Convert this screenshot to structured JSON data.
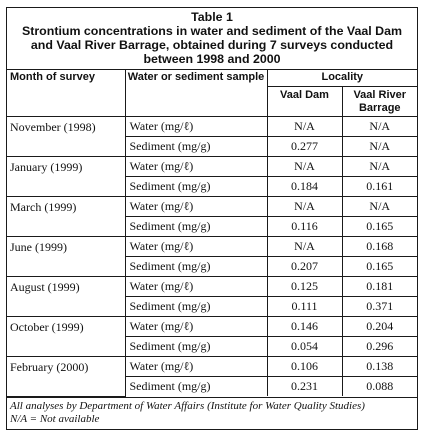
{
  "table": {
    "label": "Table 1",
    "caption": "Strontium concentrations in water and sediment of the Vaal Dam and Vaal River Barrage, obtained during 7 surveys conducted between 1998 and 2000",
    "headers": {
      "month": "Month of survey",
      "sample": "Water or sediment sample",
      "locality": "Locality",
      "vaal_dam": "Vaal Dam",
      "barrage": "Vaal River Barrage"
    },
    "surveys": [
      {
        "month": "November (1998)",
        "rows": [
          {
            "sample": "Water (mg/ℓ)",
            "vaal_dam": "N/A",
            "barrage": "N/A"
          },
          {
            "sample": "Sediment (mg/g)",
            "vaal_dam": "0.277",
            "barrage": "N/A"
          }
        ]
      },
      {
        "month": "January (1999)",
        "rows": [
          {
            "sample": "Water (mg/ℓ)",
            "vaal_dam": "N/A",
            "barrage": "N/A"
          },
          {
            "sample": "Sediment (mg/g)",
            "vaal_dam": "0.184",
            "barrage": "0.161"
          }
        ]
      },
      {
        "month": "March (1999)",
        "rows": [
          {
            "sample": "Water (mg/ℓ)",
            "vaal_dam": "N/A",
            "barrage": "N/A"
          },
          {
            "sample": "Sediment (mg/g)",
            "vaal_dam": "0.116",
            "barrage": "0.165"
          }
        ]
      },
      {
        "month": "June (1999)",
        "rows": [
          {
            "sample": "Water (mg/ℓ)",
            "vaal_dam": "N/A",
            "barrage": "0.168"
          },
          {
            "sample": "Sediment (mg/g)",
            "vaal_dam": "0.207",
            "barrage": "0.165"
          }
        ]
      },
      {
        "month": "August (1999)",
        "rows": [
          {
            "sample": "Water (mg/ℓ)",
            "vaal_dam": "0.125",
            "barrage": "0.181"
          },
          {
            "sample": "Sediment (mg/g)",
            "vaal_dam": "0.111",
            "barrage": "0.371"
          }
        ]
      },
      {
        "month": "October (1999)",
        "rows": [
          {
            "sample": "Water (mg/ℓ)",
            "vaal_dam": "0.146",
            "barrage": "0.204"
          },
          {
            "sample": "Sediment (mg/g)",
            "vaal_dam": "0.054",
            "barrage": "0.296"
          }
        ]
      },
      {
        "month": "February (2000)",
        "rows": [
          {
            "sample": "Water (mg/ℓ)",
            "vaal_dam": "0.106",
            "barrage": "0.138"
          },
          {
            "sample": "Sediment (mg/g)",
            "vaal_dam": "0.231",
            "barrage": "0.088"
          }
        ]
      }
    ],
    "footnotes": [
      "All analyses by Department of Water Affairs (Institute for Water Quality Studies)",
      "N/A = Not available"
    ]
  }
}
